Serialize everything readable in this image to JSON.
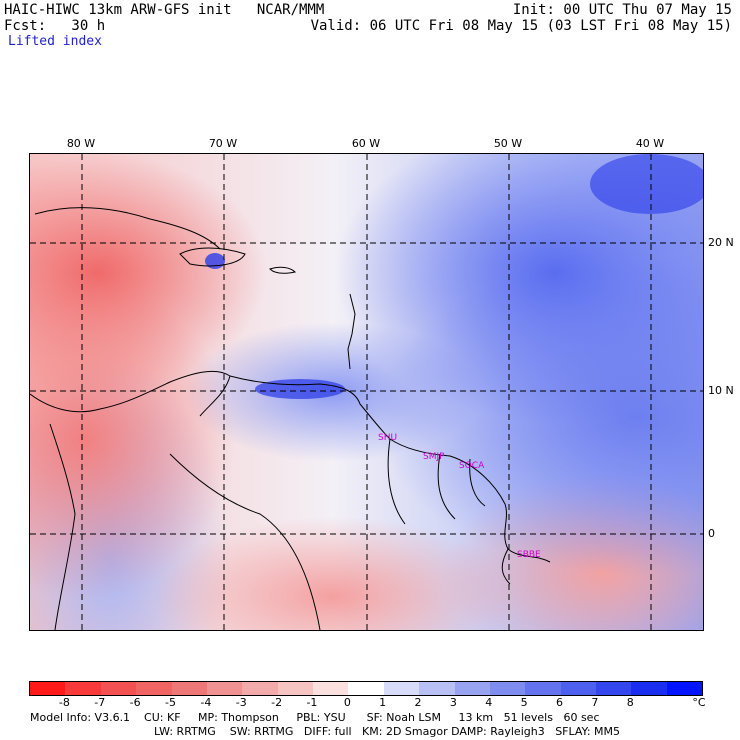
{
  "header": {
    "title_line": "HAIC-HIWC 13km ARW-GFS init   NCAR/MMM",
    "fcst_line": "Fcst:   30 h",
    "product": "Lifted index",
    "init_line": "Init: 00 UTC Thu 07 May 15",
    "valid_line": "Valid: 06 UTC Fri 08 May 15 (03 LST Fri 08 May 15)"
  },
  "map": {
    "lon_labels": [
      "80 W",
      "70 W",
      "60 W",
      "50 W",
      "40 W"
    ],
    "lat_labels": [
      "20 N",
      "10 N",
      "0"
    ],
    "sites": [
      "SHU",
      "SMJP",
      "SOCA",
      "SBBE"
    ]
  },
  "colorbar": {
    "labels": [
      "-8",
      "-7",
      "-6",
      "-5",
      "-4",
      "-3",
      "-2",
      "-1",
      "0",
      "1",
      "2",
      "3",
      "4",
      "5",
      "6",
      "7",
      "8"
    ],
    "unit": "°C",
    "colors": [
      "#ff1a1a",
      "#f93a3a",
      "#f45252",
      "#f06464",
      "#ee7878",
      "#f09292",
      "#f3aaaa",
      "#f7c4c4",
      "#fbe0e0",
      "#ffffff",
      "#d8dcf9",
      "#b8c0f6",
      "#98a4f2",
      "#7f8cf0",
      "#6474ee",
      "#4e60ee",
      "#3446ee",
      "#1a2ef0",
      "#0014ff"
    ]
  },
  "model_info": {
    "line1": "Model Info: V3.6.1    CU: KF     MP: Thompson     PBL: YSU      SF: Noah LSM     13 km   51 levels   60 sec",
    "line2": "LW: RRTMG    SW: RRTMG   DIFF: full   KM: 2D Smagor DAMP: Rayleigh3   SFLAY: MM5"
  }
}
